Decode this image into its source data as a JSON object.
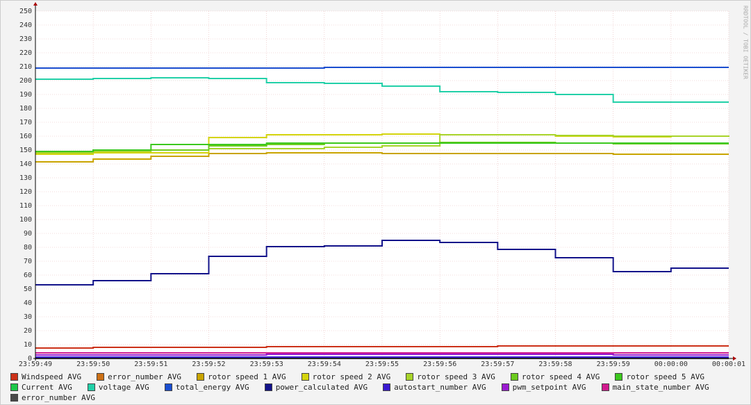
{
  "chart_data": {
    "type": "line",
    "step": true,
    "side_label": "RRDTOOL / TOBI OETIKER",
    "categories": [
      "23:59:49",
      "23:59:50",
      "23:59:51",
      "23:59:52",
      "23:59:53",
      "23:59:54",
      "23:59:55",
      "23:59:56",
      "23:59:57",
      "23:59:58",
      "23:59:59",
      "00:00:00",
      "00:00:01"
    ],
    "ylim": [
      0,
      250
    ],
    "yticks": [
      0,
      10,
      20,
      30,
      40,
      50,
      60,
      70,
      80,
      90,
      100,
      110,
      120,
      130,
      140,
      150,
      160,
      170,
      180,
      190,
      200,
      210,
      220,
      230,
      240,
      250
    ],
    "grid": true,
    "series": [
      {
        "name": "Windspeed AVG",
        "color": "#cc3118",
        "values": [
          7.5,
          8,
          8,
          8,
          8.5,
          8.5,
          8.5,
          8.5,
          9,
          9,
          9,
          9,
          9
        ]
      },
      {
        "name": "error_number AVG",
        "color": "#cc7016",
        "values": [
          0,
          0,
          0,
          0,
          0,
          0,
          0,
          0,
          0,
          0,
          0,
          0,
          0
        ]
      },
      {
        "name": "rotor speed 1 AVG",
        "color": "#c9a400",
        "values": [
          141.5,
          143.5,
          145.5,
          147.5,
          148,
          148,
          147.5,
          147.5,
          147.5,
          147.5,
          147,
          147,
          147
        ]
      },
      {
        "name": "rotor speed 2 AVG",
        "color": "#d4d40e",
        "values": [
          147,
          148,
          148,
          159,
          161,
          161,
          161.5,
          161,
          161,
          160,
          159.5,
          160,
          160
        ]
      },
      {
        "name": "rotor speed 3 AVG",
        "color": "#a8d42a",
        "values": [
          148,
          149,
          150,
          151,
          151,
          152,
          153,
          161,
          161,
          160.5,
          160,
          160,
          160.5
        ]
      },
      {
        "name": "rotor speed 4 AVG",
        "color": "#6ccc1e",
        "values": [
          149,
          150,
          150,
          153,
          154,
          155,
          155,
          155.5,
          155.5,
          155,
          154.5,
          154.5,
          154.5
        ]
      },
      {
        "name": "rotor speed 5 AVG",
        "color": "#3cc81e",
        "values": [
          149,
          150,
          154,
          154,
          155,
          155,
          155,
          155,
          155,
          155,
          155,
          155,
          155
        ]
      },
      {
        "name": "Current AVG",
        "color": "#1ec84a",
        "values": [
          0,
          0,
          0,
          0,
          0,
          0,
          0,
          0,
          0,
          0,
          0,
          0,
          0
        ]
      },
      {
        "name": "voltage AVG",
        "color": "#22d0a8",
        "values": [
          201,
          201.5,
          202,
          201.5,
          198.5,
          198,
          196,
          192,
          191.5,
          190,
          184.5,
          184.5,
          184.5
        ]
      },
      {
        "name": "total_energy AVG",
        "color": "#1a4ed0",
        "values": [
          209,
          209,
          209,
          209,
          209,
          209.5,
          209.5,
          209.5,
          209.5,
          209.5,
          209.5,
          209.5,
          209.5
        ]
      },
      {
        "name": "power_calculated AVG",
        "color": "#12128a",
        "values": [
          53,
          56,
          61,
          73.5,
          80.5,
          81,
          85,
          83.5,
          78.5,
          72.5,
          62.5,
          65,
          65
        ]
      },
      {
        "name": "autostart_number AVG",
        "color": "#3a1ad0",
        "values": [
          1,
          1,
          1,
          1,
          1,
          1,
          1,
          1,
          1,
          1,
          1,
          1,
          1
        ]
      },
      {
        "name": "pwm_setpoint AVG",
        "color": "#9a1ad0",
        "values": [
          2.5,
          2.5,
          2.5,
          2.5,
          3,
          3,
          3,
          3,
          3,
          3,
          2.5,
          2.5,
          2.5
        ]
      },
      {
        "name": "main_state_number AVG",
        "color": "#d01a8e",
        "values": [
          4,
          4,
          4,
          4,
          4,
          4,
          4,
          4,
          4,
          4,
          4,
          4,
          4
        ]
      },
      {
        "name": "error_number AVG",
        "color": "#4a4a4a",
        "values": [
          0,
          0,
          0,
          0,
          0,
          0,
          0,
          0,
          0,
          0,
          0,
          0,
          0
        ]
      }
    ]
  }
}
